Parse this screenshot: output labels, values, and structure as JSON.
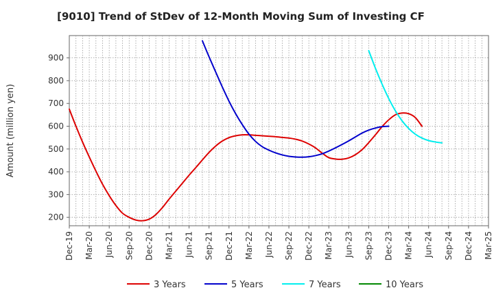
{
  "chart_data": {
    "type": "line",
    "title": "[9010]  Trend of StDev of 12-Month Moving Sum of Investing CF",
    "ylabel": "Amount (million yen)",
    "xlabel": "",
    "ylim": [
      163,
      998
    ],
    "yticks": [
      200,
      300,
      400,
      500,
      600,
      700,
      800,
      900
    ],
    "xticks": [
      "Dec-19",
      "Mar-20",
      "Jun-20",
      "Sep-20",
      "Dec-20",
      "Mar-21",
      "Jun-21",
      "Sep-21",
      "Dec-21",
      "Mar-22",
      "Jun-22",
      "Sep-22",
      "Dec-22",
      "Mar-23",
      "Jun-23",
      "Sep-23",
      "Dec-23",
      "Mar-24",
      "Jun-24",
      "Sep-24",
      "Dec-24",
      "Mar-25"
    ],
    "grid": true,
    "legend_position": "bottom",
    "series": [
      {
        "name": "3 Years",
        "color": "#dd0000",
        "values": [
          [
            "Dec-19",
            675
          ],
          [
            "Jan-20",
            600
          ],
          [
            "Feb-20",
            530
          ],
          [
            "Mar-20",
            465
          ],
          [
            "Apr-20",
            403
          ],
          [
            "May-20",
            345
          ],
          [
            "Jun-20",
            295
          ],
          [
            "Jul-20",
            252
          ],
          [
            "Aug-20",
            218
          ],
          [
            "Sep-20",
            200
          ],
          [
            "Oct-20",
            188
          ],
          [
            "Nov-20",
            185
          ],
          [
            "Dec-20",
            192
          ],
          [
            "Jan-21",
            212
          ],
          [
            "Feb-21",
            243
          ],
          [
            "Mar-21",
            280
          ],
          [
            "Apr-21",
            315
          ],
          [
            "May-21",
            350
          ],
          [
            "Jun-21",
            385
          ],
          [
            "Jul-21",
            418
          ],
          [
            "Aug-21",
            452
          ],
          [
            "Sep-21",
            485
          ],
          [
            "Oct-21",
            513
          ],
          [
            "Nov-21",
            535
          ],
          [
            "Dec-21",
            550
          ],
          [
            "Jan-22",
            558
          ],
          [
            "Feb-22",
            562
          ],
          [
            "Mar-22",
            562
          ],
          [
            "Apr-22",
            560
          ],
          [
            "May-22",
            558
          ],
          [
            "Jun-22",
            556
          ],
          [
            "Jul-22",
            554
          ],
          [
            "Aug-22",
            551
          ],
          [
            "Sep-22",
            548
          ],
          [
            "Oct-22",
            543
          ],
          [
            "Nov-22",
            535
          ],
          [
            "Dec-22",
            522
          ],
          [
            "Jan-23",
            505
          ],
          [
            "Feb-23",
            482
          ],
          [
            "Mar-23",
            462
          ],
          [
            "Apr-23",
            456
          ],
          [
            "May-23",
            455
          ],
          [
            "Jun-23",
            461
          ],
          [
            "Jul-23",
            475
          ],
          [
            "Aug-23",
            497
          ],
          [
            "Sep-23",
            528
          ],
          [
            "Oct-23",
            562
          ],
          [
            "Nov-23",
            598
          ],
          [
            "Dec-23",
            628
          ],
          [
            "Jan-24",
            650
          ],
          [
            "Feb-24",
            658
          ],
          [
            "Mar-24",
            655
          ],
          [
            "Apr-24",
            638
          ],
          [
            "May-24",
            600
          ]
        ]
      },
      {
        "name": "5 Years",
        "color": "#0000cc",
        "values": [
          [
            "Aug-21",
            975
          ],
          [
            "Sep-21",
            905
          ],
          [
            "Oct-21",
            838
          ],
          [
            "Nov-21",
            772
          ],
          [
            "Dec-21",
            710
          ],
          [
            "Jan-22",
            655
          ],
          [
            "Feb-22",
            607
          ],
          [
            "Mar-22",
            565
          ],
          [
            "Apr-22",
            533
          ],
          [
            "May-22",
            510
          ],
          [
            "Jun-22",
            495
          ],
          [
            "Jul-22",
            483
          ],
          [
            "Aug-22",
            474
          ],
          [
            "Sep-22",
            468
          ],
          [
            "Oct-22",
            465
          ],
          [
            "Nov-22",
            464
          ],
          [
            "Dec-22",
            466
          ],
          [
            "Jan-23",
            471
          ],
          [
            "Feb-23",
            479
          ],
          [
            "Mar-23",
            491
          ],
          [
            "Apr-23",
            505
          ],
          [
            "May-23",
            520
          ],
          [
            "Jun-23",
            536
          ],
          [
            "Jul-23",
            553
          ],
          [
            "Aug-23",
            570
          ],
          [
            "Sep-23",
            583
          ],
          [
            "Oct-23",
            592
          ],
          [
            "Nov-23",
            598
          ],
          [
            "Dec-23",
            600
          ]
        ]
      },
      {
        "name": "7 Years",
        "color": "#00eeee",
        "values": [
          [
            "Sep-23",
            932
          ],
          [
            "Oct-23",
            855
          ],
          [
            "Nov-23",
            785
          ],
          [
            "Dec-23",
            722
          ],
          [
            "Jan-24",
            668
          ],
          [
            "Feb-24",
            624
          ],
          [
            "Mar-24",
            590
          ],
          [
            "Apr-24",
            565
          ],
          [
            "May-24",
            548
          ],
          [
            "Jun-24",
            537
          ],
          [
            "Jul-24",
            531
          ],
          [
            "Aug-24",
            527
          ]
        ]
      },
      {
        "name": "10 Years",
        "color": "#008800",
        "values": []
      }
    ]
  }
}
